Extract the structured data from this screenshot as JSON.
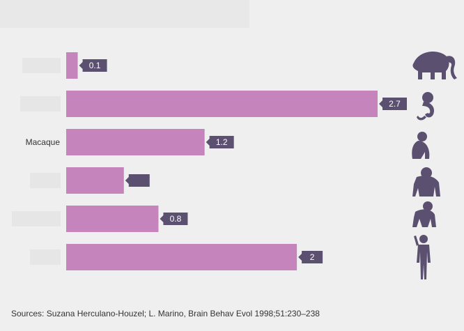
{
  "chart_data": {
    "type": "bar",
    "orientation": "horizontal",
    "categories": [
      "",
      "",
      "Macaque",
      "",
      "",
      ""
    ],
    "values": [
      0.1,
      2.7,
      1.2,
      0.5,
      0.8,
      2
    ],
    "value_labels": [
      "0.1",
      "2.7",
      "1.2",
      "",
      "0.8",
      "2"
    ],
    "icons": [
      "elephant-icon",
      "monkey-icon",
      "macaque-icon",
      "gorilla-icon",
      "chimpanzee-icon",
      "human-icon"
    ],
    "xlim": [
      0,
      2.7
    ],
    "title": "",
    "xlabel": "",
    "ylabel": "",
    "grid": false,
    "colors": {
      "bar": "#c584bc",
      "label_bg": "#5b5070",
      "label_text": "#ffffff",
      "icon": "#5b5070",
      "placeholder": "#e7e6e7"
    }
  },
  "footer": {
    "source": "Sources: Suzana Herculano-Houzel; L. Marino, Brain Behav Evol 1998;51:230–238"
  }
}
